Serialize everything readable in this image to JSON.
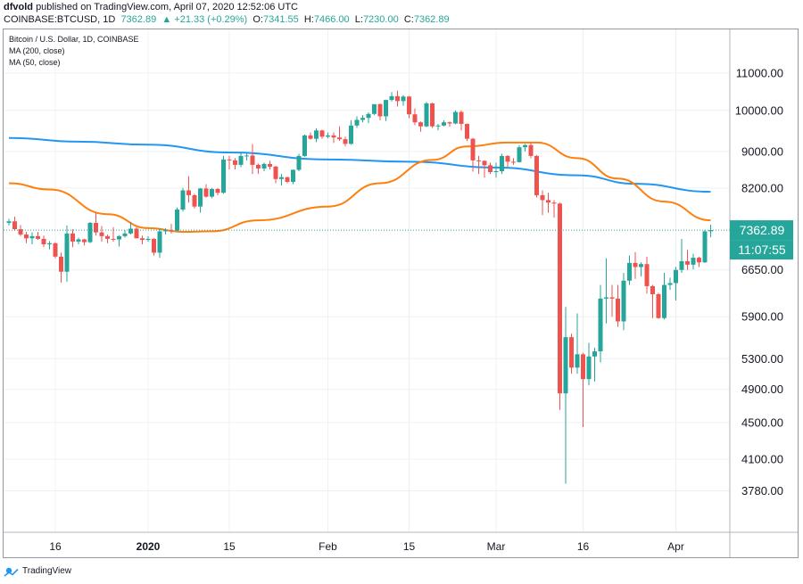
{
  "header": {
    "author": "dfvold",
    "published": "published on TradingView.com, April 07, 2020 12:52:06 UTC"
  },
  "ohlc": {
    "symbol": "COINBASE:BTCUSD, 1D",
    "last": "7362.89",
    "change": "▲ +21.33 (+0.29%)",
    "o_label": "O:",
    "o": "7341.55",
    "h_label": "H:",
    "h": "7466.00",
    "l_label": "L:",
    "l": "7230.00",
    "c_label": "C:",
    "c": "7362.89"
  },
  "legend": {
    "title": "Bitcoin / U.S. Dollar, 1D, COINBASE",
    "ma200": "MA (200, close)",
    "ma50": "MA (50, close)"
  },
  "price_badge": "7362.89",
  "time_badge": "11:07:55",
  "footer": {
    "brand": "TradingView"
  },
  "colors": {
    "up": "#26a69a",
    "down": "#ef5350",
    "ma200": "#2196f3",
    "ma50": "#ff7f0e",
    "badge": "#26a69a"
  },
  "chart_data": {
    "type": "candlestick",
    "title": "Bitcoin / U.S. Dollar, 1D, COINBASE",
    "y_ticks": [
      11000,
      10000,
      9000,
      8200,
      7362.89,
      6650,
      5900,
      5300,
      4900,
      4500,
      4100,
      3780
    ],
    "y_tick_labels": [
      "11000.00",
      "10000.00",
      "9000.00",
      "8200.00",
      "7362.89",
      "6650.00",
      "5900.00",
      "5300.00",
      "4900.00",
      "4500.00",
      "4100.00",
      "3780.00"
    ],
    "y_scale": "log",
    "ylim": [
      3400,
      12300
    ],
    "x_ticks": [
      "16",
      "2020",
      "15",
      "Feb",
      "15",
      "Mar",
      "16",
      "Apr"
    ],
    "x_tick_dates": [
      "2019-12-16",
      "2020-01-01",
      "2020-01-15",
      "2020-02-01",
      "2020-02-15",
      "2020-03-01",
      "2020-03-16",
      "2020-04-01"
    ],
    "date_range": [
      "2019-12-08",
      "2020-04-07"
    ],
    "grid": true,
    "last_price": 7362.89,
    "candles": [
      [
        "2019-12-08",
        7500,
        7580,
        7450,
        7530
      ],
      [
        "2019-12-09",
        7530,
        7620,
        7350,
        7380
      ],
      [
        "2019-12-10",
        7380,
        7460,
        7250,
        7280
      ],
      [
        "2019-12-11",
        7280,
        7330,
        7120,
        7210
      ],
      [
        "2019-12-12",
        7210,
        7320,
        7100,
        7250
      ],
      [
        "2019-12-13",
        7250,
        7330,
        7180,
        7200
      ],
      [
        "2019-12-14",
        7200,
        7260,
        7050,
        7100
      ],
      [
        "2019-12-15",
        7100,
        7160,
        7010,
        7120
      ],
      [
        "2019-12-16",
        7120,
        7140,
        6850,
        6880
      ],
      [
        "2019-12-17",
        6880,
        6950,
        6440,
        6620
      ],
      [
        "2019-12-18",
        6620,
        7450,
        6450,
        7300
      ],
      [
        "2019-12-19",
        7300,
        7380,
        7050,
        7150
      ],
      [
        "2019-12-20",
        7150,
        7220,
        7100,
        7190
      ],
      [
        "2019-12-21",
        7190,
        7200,
        7080,
        7140
      ],
      [
        "2019-12-22",
        7140,
        7520,
        7120,
        7500
      ],
      [
        "2019-12-23",
        7500,
        7700,
        7260,
        7320
      ],
      [
        "2019-12-24",
        7320,
        7440,
        7150,
        7250
      ],
      [
        "2019-12-25",
        7250,
        7280,
        7120,
        7200
      ],
      [
        "2019-12-26",
        7200,
        7420,
        7150,
        7190
      ],
      [
        "2019-12-27",
        7190,
        7270,
        7060,
        7250
      ],
      [
        "2019-12-28",
        7250,
        7360,
        7220,
        7300
      ],
      [
        "2019-12-29",
        7300,
        7520,
        7280,
        7390
      ],
      [
        "2019-12-30",
        7390,
        7420,
        7250,
        7210
      ],
      [
        "2019-12-31",
        7210,
        7260,
        7100,
        7180
      ],
      [
        "2020-01-01",
        7180,
        7250,
        7150,
        7200
      ],
      [
        "2020-01-02",
        7200,
        7210,
        6900,
        6950
      ],
      [
        "2020-01-03",
        6950,
        7400,
        6860,
        7340
      ],
      [
        "2020-01-04",
        7340,
        7400,
        7280,
        7360
      ],
      [
        "2020-01-05",
        7360,
        7480,
        7300,
        7350
      ],
      [
        "2020-01-06",
        7350,
        7800,
        7340,
        7760
      ],
      [
        "2020-01-07",
        7760,
        8200,
        7720,
        8150
      ],
      [
        "2020-01-08",
        8150,
        8450,
        7900,
        8050
      ],
      [
        "2020-01-09",
        8050,
        8080,
        7780,
        7820
      ],
      [
        "2020-01-10",
        7820,
        8200,
        7700,
        8190
      ],
      [
        "2020-01-11",
        8190,
        8280,
        8000,
        8020
      ],
      [
        "2020-01-12",
        8020,
        8200,
        7990,
        8180
      ],
      [
        "2020-01-13",
        8180,
        8200,
        8050,
        8100
      ],
      [
        "2020-01-14",
        8100,
        8900,
        8080,
        8820
      ],
      [
        "2020-01-15",
        8820,
        8900,
        8600,
        8800
      ],
      [
        "2020-01-16",
        8800,
        8850,
        8600,
        8700
      ],
      [
        "2020-01-17",
        8700,
        9000,
        8650,
        8900
      ],
      [
        "2020-01-18",
        8900,
        8980,
        8800,
        8910
      ],
      [
        "2020-01-19",
        8910,
        9180,
        8500,
        8700
      ],
      [
        "2020-01-20",
        8700,
        8730,
        8500,
        8620
      ],
      [
        "2020-01-21",
        8620,
        8750,
        8560,
        8720
      ],
      [
        "2020-01-22",
        8720,
        8790,
        8600,
        8660
      ],
      [
        "2020-01-23",
        8660,
        8680,
        8300,
        8390
      ],
      [
        "2020-01-24",
        8390,
        8500,
        8250,
        8430
      ],
      [
        "2020-01-25",
        8430,
        8440,
        8300,
        8330
      ],
      [
        "2020-01-26",
        8330,
        8600,
        8280,
        8590
      ],
      [
        "2020-01-27",
        8590,
        8950,
        8560,
        8900
      ],
      [
        "2020-01-28",
        8900,
        9400,
        8880,
        9380
      ],
      [
        "2020-01-29",
        9380,
        9450,
        9280,
        9300
      ],
      [
        "2020-01-30",
        9300,
        9550,
        9220,
        9500
      ],
      [
        "2020-01-31",
        9500,
        9520,
        9300,
        9350
      ],
      [
        "2020-02-01",
        9350,
        9450,
        9310,
        9380
      ],
      [
        "2020-02-02",
        9380,
        9450,
        9200,
        9330
      ],
      [
        "2020-02-03",
        9330,
        9600,
        9250,
        9290
      ],
      [
        "2020-02-04",
        9290,
        9350,
        9120,
        9180
      ],
      [
        "2020-02-05",
        9180,
        9750,
        9160,
        9620
      ],
      [
        "2020-02-06",
        9620,
        9850,
        9560,
        9760
      ],
      [
        "2020-02-07",
        9760,
        9880,
        9700,
        9810
      ],
      [
        "2020-02-08",
        9810,
        9950,
        9680,
        9910
      ],
      [
        "2020-02-09",
        9910,
        10150,
        9880,
        10160
      ],
      [
        "2020-02-10",
        10160,
        10180,
        9750,
        9850
      ],
      [
        "2020-02-11",
        9850,
        10280,
        9730,
        10270
      ],
      [
        "2020-02-12",
        10270,
        10480,
        10230,
        10370
      ],
      [
        "2020-02-13",
        10370,
        10520,
        10100,
        10240
      ],
      [
        "2020-02-14",
        10240,
        10400,
        10120,
        10360
      ],
      [
        "2020-02-15",
        10360,
        10380,
        9800,
        9900
      ],
      [
        "2020-02-16",
        9900,
        10050,
        9630,
        9700
      ],
      [
        "2020-02-17",
        9700,
        9720,
        9470,
        9600
      ],
      [
        "2020-02-18",
        9600,
        10220,
        9580,
        10180
      ],
      [
        "2020-02-19",
        10180,
        10200,
        9560,
        9600
      ],
      [
        "2020-02-20",
        9600,
        9660,
        9500,
        9620
      ],
      [
        "2020-02-21",
        9620,
        9750,
        9600,
        9700
      ],
      [
        "2020-02-22",
        9700,
        9720,
        9590,
        9670
      ],
      [
        "2020-02-23",
        9670,
        10000,
        9650,
        9960
      ],
      [
        "2020-02-24",
        9960,
        10000,
        9500,
        9660
      ],
      [
        "2020-02-25",
        9660,
        9670,
        9250,
        9300
      ],
      [
        "2020-02-26",
        9300,
        9320,
        8550,
        8800
      ],
      [
        "2020-02-27",
        8800,
        8900,
        8500,
        8790
      ],
      [
        "2020-02-28",
        8790,
        8800,
        8420,
        8690
      ],
      [
        "2020-02-29",
        8690,
        8750,
        8500,
        8540
      ],
      [
        "2020-03-01",
        8540,
        8750,
        8420,
        8560
      ],
      [
        "2020-03-02",
        8560,
        8950,
        8500,
        8900
      ],
      [
        "2020-03-03",
        8900,
        8920,
        8650,
        8770
      ],
      [
        "2020-03-04",
        8770,
        8850,
        8700,
        8760
      ],
      [
        "2020-03-05",
        8760,
        9150,
        8750,
        9100
      ],
      [
        "2020-03-06",
        9100,
        9180,
        9000,
        9150
      ],
      [
        "2020-03-07",
        9150,
        9200,
        8850,
        8900
      ],
      [
        "2020-03-08",
        8900,
        8920,
        8000,
        8050
      ],
      [
        "2020-03-09",
        8050,
        8150,
        7650,
        7950
      ],
      [
        "2020-03-10",
        7950,
        8100,
        7700,
        7900
      ],
      [
        "2020-03-11",
        7900,
        7950,
        7600,
        7880
      ],
      [
        "2020-03-12",
        7880,
        7900,
        4650,
        4850
      ],
      [
        "2020-03-13",
        4850,
        6050,
        3850,
        5600
      ],
      [
        "2020-03-14",
        5600,
        5650,
        5100,
        5180
      ],
      [
        "2020-03-15",
        5180,
        5950,
        5100,
        5360
      ],
      [
        "2020-03-16",
        5360,
        5380,
        4450,
        5030
      ],
      [
        "2020-03-17",
        5030,
        5520,
        4950,
        5330
      ],
      [
        "2020-03-18",
        5330,
        5450,
        5000,
        5400
      ],
      [
        "2020-03-19",
        5400,
        6400,
        5250,
        6180
      ],
      [
        "2020-03-20",
        6180,
        6850,
        5800,
        6200
      ],
      [
        "2020-03-21",
        6200,
        6400,
        5900,
        6180
      ],
      [
        "2020-03-22",
        6180,
        6400,
        5750,
        5830
      ],
      [
        "2020-03-23",
        5830,
        6600,
        5700,
        6470
      ],
      [
        "2020-03-24",
        6470,
        6900,
        6400,
        6770
      ],
      [
        "2020-03-25",
        6770,
        6960,
        6500,
        6700
      ],
      [
        "2020-03-26",
        6700,
        6780,
        6540,
        6750
      ],
      [
        "2020-03-27",
        6750,
        6880,
        6260,
        6380
      ],
      [
        "2020-03-28",
        6380,
        6400,
        5880,
        6250
      ],
      [
        "2020-03-29",
        6250,
        6270,
        5870,
        5880
      ],
      [
        "2020-03-30",
        5880,
        6600,
        5860,
        6400
      ],
      [
        "2020-03-31",
        6400,
        6520,
        6320,
        6430
      ],
      [
        "2020-04-01",
        6430,
        6700,
        6150,
        6650
      ],
      [
        "2020-04-02",
        6650,
        7200,
        6600,
        6800
      ],
      [
        "2020-04-03",
        6800,
        7000,
        6650,
        6740
      ],
      [
        "2020-04-04",
        6740,
        6930,
        6660,
        6860
      ],
      [
        "2020-04-05",
        6860,
        6880,
        6700,
        6780
      ],
      [
        "2020-04-06",
        6780,
        7370,
        6770,
        7340
      ],
      [
        "2020-04-07",
        7341.55,
        7466,
        7230,
        7362.89
      ]
    ],
    "series": [
      {
        "name": "MA (200, close)",
        "color": "#2196f3",
        "points": [
          [
            "2019-12-08",
            9320
          ],
          [
            "2019-12-20",
            9230
          ],
          [
            "2020-01-01",
            9160
          ],
          [
            "2020-01-15",
            8980
          ],
          [
            "2020-02-01",
            8820
          ],
          [
            "2020-02-15",
            8770
          ],
          [
            "2020-03-01",
            8640
          ],
          [
            "2020-03-15",
            8470
          ],
          [
            "2020-03-25",
            8290
          ],
          [
            "2020-04-07",
            8120
          ]
        ]
      },
      {
        "name": "MA (50, close)",
        "color": "#ff7f0e",
        "points": [
          [
            "2019-12-08",
            8300
          ],
          [
            "2019-12-15",
            8170
          ],
          [
            "2019-12-25",
            7670
          ],
          [
            "2020-01-01",
            7400
          ],
          [
            "2020-01-07",
            7330
          ],
          [
            "2020-01-12",
            7340
          ],
          [
            "2020-01-20",
            7550
          ],
          [
            "2020-02-01",
            7820
          ],
          [
            "2020-02-10",
            8300
          ],
          [
            "2020-02-19",
            8810
          ],
          [
            "2020-02-25",
            9120
          ],
          [
            "2020-03-03",
            9210
          ],
          [
            "2020-03-08",
            9210
          ],
          [
            "2020-03-15",
            8850
          ],
          [
            "2020-03-22",
            8400
          ],
          [
            "2020-03-30",
            7920
          ],
          [
            "2020-04-07",
            7550
          ]
        ]
      }
    ]
  }
}
